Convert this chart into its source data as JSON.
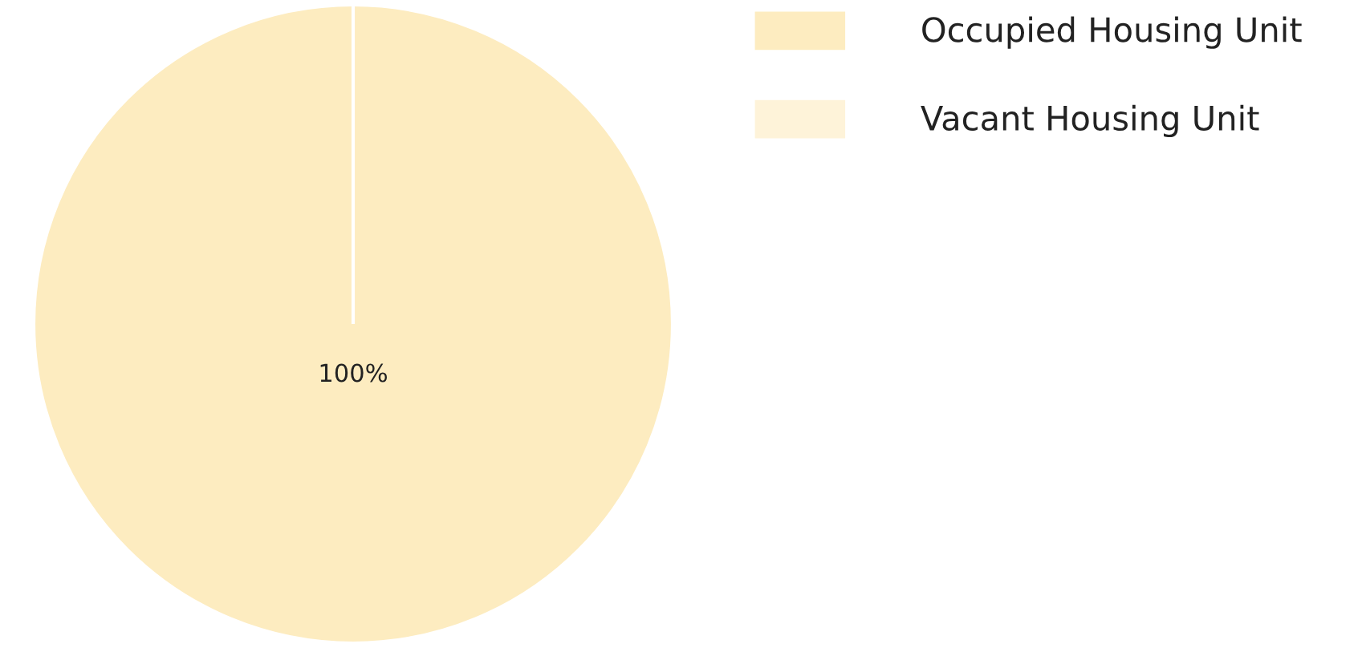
{
  "chart_data": {
    "type": "pie",
    "categories": [
      "Occupied Housing Unit",
      "Vacant Housing Unit"
    ],
    "values": [
      100,
      0
    ],
    "colors": [
      "#fdecc0",
      "#fef3d9"
    ],
    "value_labels": [
      "100%",
      null
    ],
    "legend": "top right"
  }
}
